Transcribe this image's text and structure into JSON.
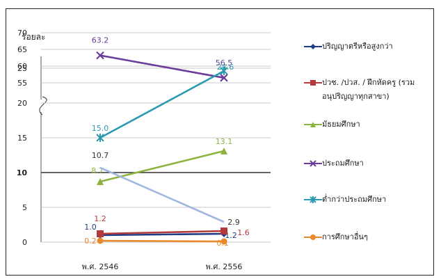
{
  "chart_data": {
    "type": "line",
    "ylabel": "ร้อยละ",
    "categories": [
      "พ.ศ. 2546",
      "พ.ศ. 2556"
    ],
    "y_ticks_lower": [
      "0",
      "5",
      "10",
      "15",
      "20",
      "25"
    ],
    "y_ticks_upper": [
      "55",
      "60",
      "65",
      "70"
    ],
    "y_axis_break": [
      25,
      55
    ],
    "grid": "horizontal",
    "legend_position": "right",
    "series": [
      {
        "name": "ปริญญาตรีหรือสูงกว่า",
        "values": [
          1.0,
          1.2
        ],
        "labels": [
          "1.0",
          "1.2"
        ],
        "color": "#1f3c88",
        "marker": "diamond"
      },
      {
        "name": "ปวช. /ปวส. / ฝึกหัดครู (รวม\nอนุปริญญาทุกสาขา)",
        "values": [
          1.2,
          1.6
        ],
        "labels": [
          "1.2",
          "1.6"
        ],
        "color": "#b23a3a",
        "marker": "square"
      },
      {
        "name": "มัธยมศึกษา",
        "values": [
          8.7,
          13.1
        ],
        "labels": [
          "8.7",
          "13.1"
        ],
        "color": "#8db33f",
        "marker": "triangle"
      },
      {
        "name": "ประถมศึกษา",
        "values": [
          63.2,
          56.5
        ],
        "labels": [
          "63.2",
          "56.5"
        ],
        "color": "#6a3d9a",
        "marker": "x"
      },
      {
        "name": "ต่ำกว่าประถมศึกษา",
        "values": [
          15.0,
          24.6
        ],
        "labels": [
          "15.0",
          "24.6"
        ],
        "color": "#2b9ab0",
        "marker": "star"
      },
      {
        "name": "การศึกษาอื่นๆ",
        "values": [
          0.2,
          0.1
        ],
        "labels": [
          "0.2",
          "0.1"
        ],
        "color": "#e8892b",
        "marker": "circle"
      },
      {
        "name": "",
        "values": [
          10.7,
          2.9
        ],
        "labels": [
          "10.7",
          "2.9"
        ],
        "color": "#9fb8e0",
        "marker": "none"
      }
    ]
  }
}
